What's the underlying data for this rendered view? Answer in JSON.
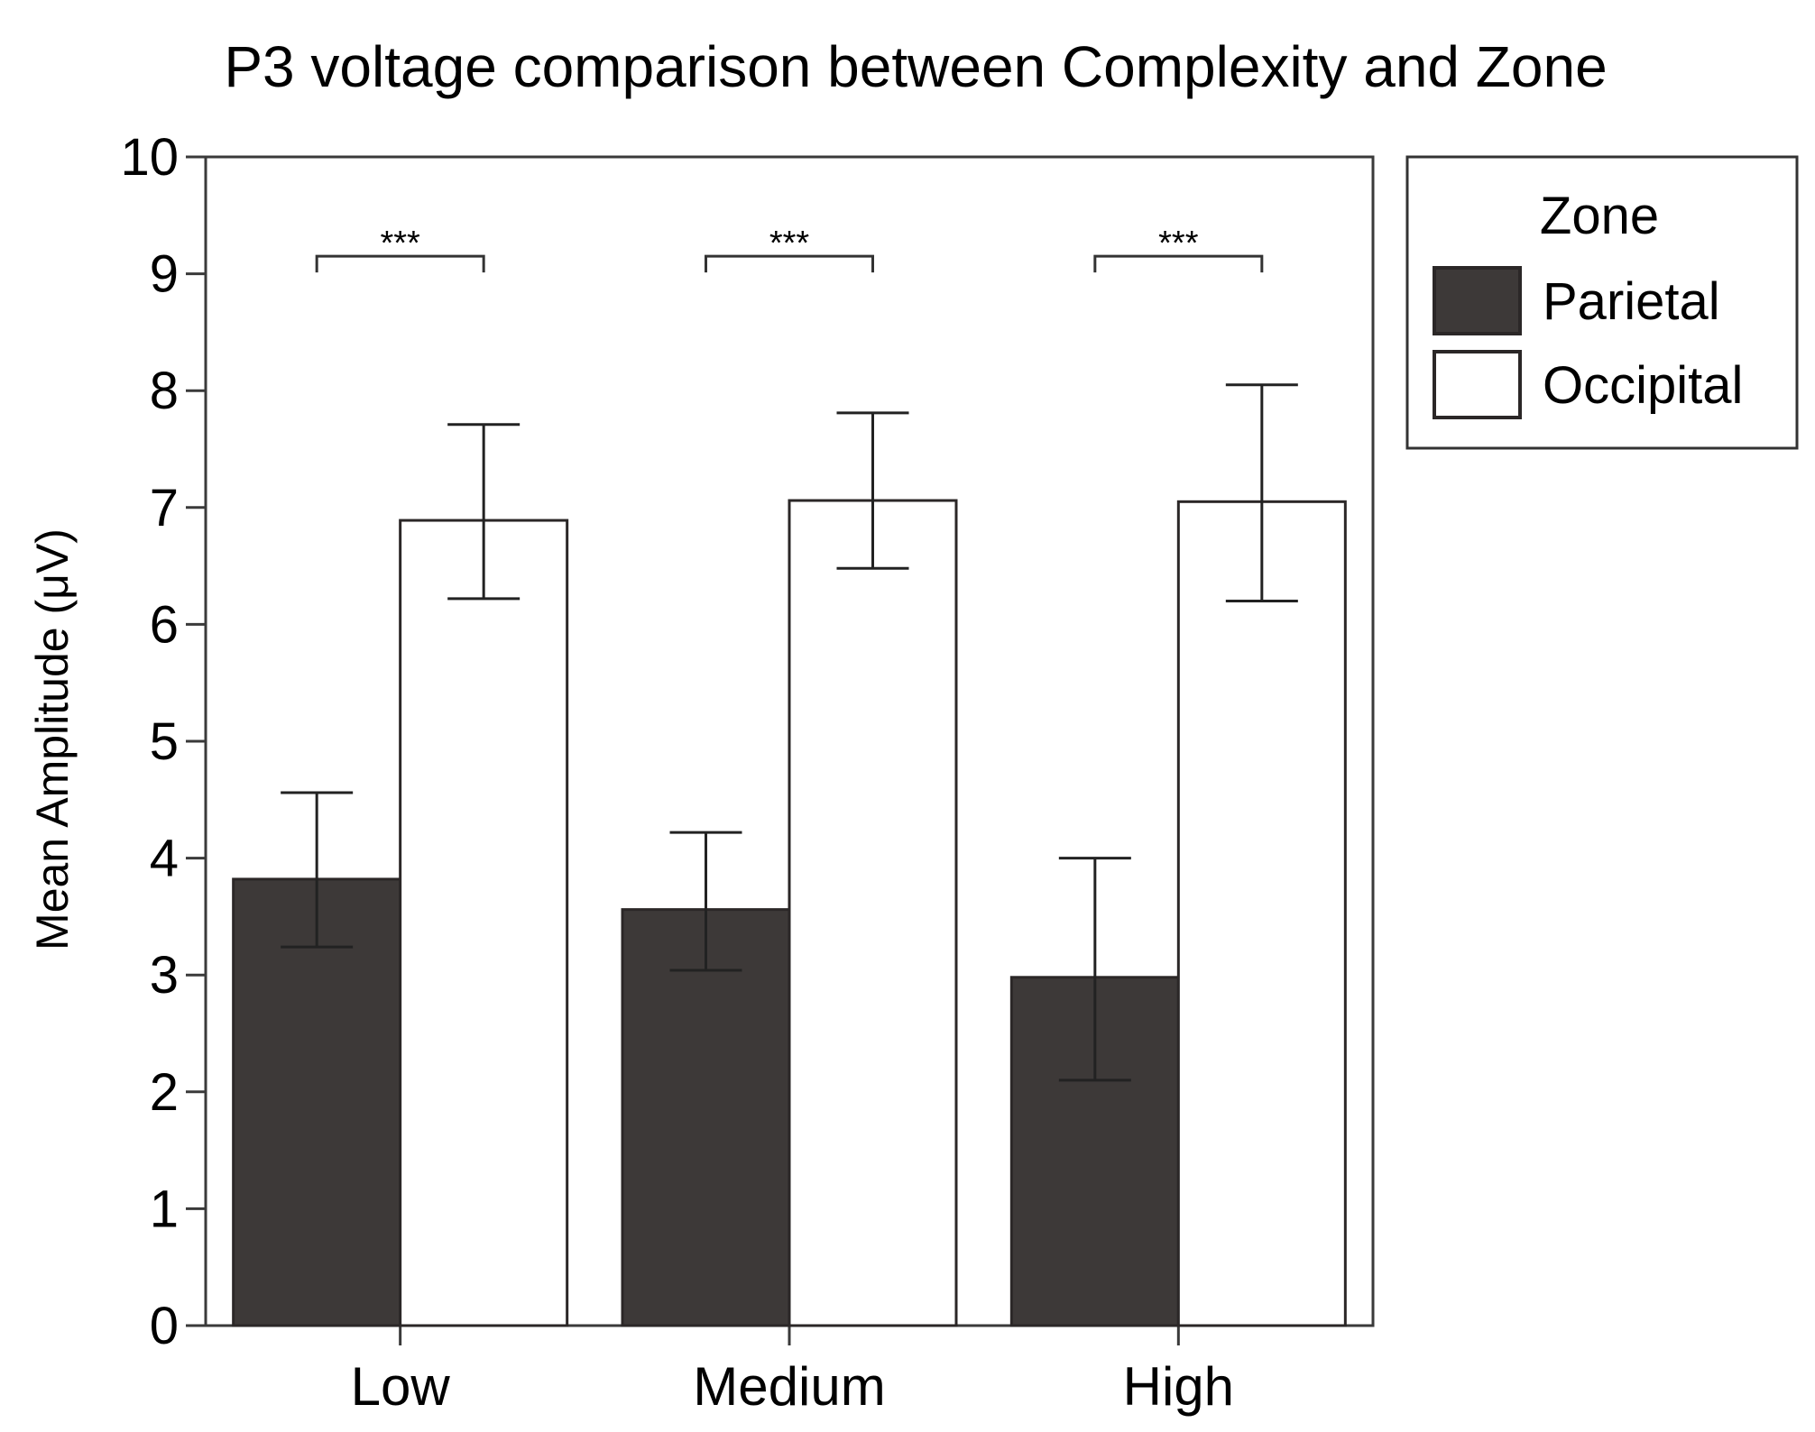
{
  "chart_data": {
    "type": "bar",
    "title": "P3 voltage comparison between Complexity and Zone",
    "xlabel": "",
    "ylabel": "Mean Amplitude (μV)",
    "ylim": [
      0,
      10
    ],
    "yticks": [
      "0",
      "1",
      "2",
      "3",
      "4",
      "5",
      "6",
      "7",
      "8",
      "9",
      "10"
    ],
    "categories": [
      "Low",
      "Medium",
      "High"
    ],
    "series": [
      {
        "name": "Parietal",
        "color": "#3d3938",
        "values": [
          3.82,
          3.56,
          2.98
        ],
        "err_low": [
          3.24,
          3.04,
          2.1
        ],
        "err_high": [
          4.56,
          4.22,
          4.0
        ]
      },
      {
        "name": "Occipital",
        "color": "#ffffff",
        "values": [
          6.89,
          7.06,
          7.05
        ],
        "err_low": [
          6.22,
          6.48,
          6.2
        ],
        "err_high": [
          7.71,
          7.81,
          8.05
        ]
      }
    ],
    "legend": {
      "title": "Zone",
      "position": "right"
    },
    "annotations": [
      {
        "category": "Low",
        "text": "***",
        "y": 9.15
      },
      {
        "category": "Medium",
        "text": "***",
        "y": 9.15
      },
      {
        "category": "High",
        "text": "***",
        "y": 9.15
      }
    ],
    "grid": false
  }
}
